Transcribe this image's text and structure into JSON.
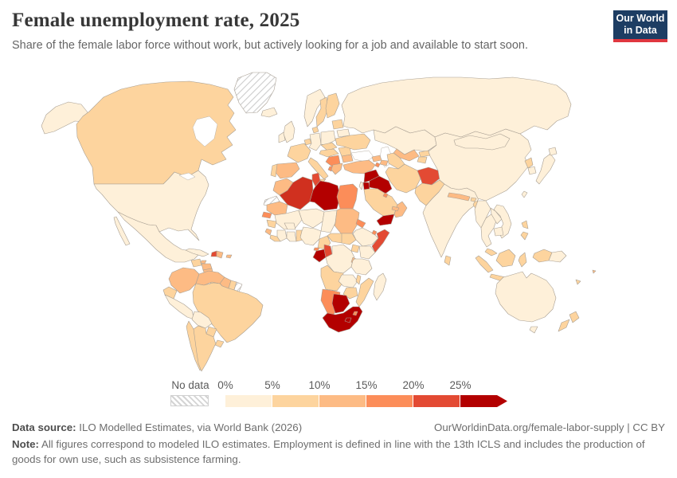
{
  "header": {
    "title": "Female unemployment rate, 2025",
    "subtitle": "Share of the female labor force without work, but actively looking for a job and available to start soon.",
    "logo": {
      "line1": "Our World",
      "line2": "in Data",
      "bg": "#1d3d63",
      "accent": "#e0373f"
    }
  },
  "legend": {
    "no_data_label": "No data",
    "tick_labels": [
      "0%",
      "5%",
      "10%",
      "15%",
      "20%",
      "25%"
    ],
    "bins": [
      {
        "range": "0-5%",
        "color": "#fef0d9"
      },
      {
        "range": "5-10%",
        "color": "#fdd49e"
      },
      {
        "range": "10-15%",
        "color": "#fdbb84"
      },
      {
        "range": "15-20%",
        "color": "#fc8d59"
      },
      {
        "range": "20-25%",
        "color": "#e34a33"
      },
      {
        "range": "25%+",
        "color": "#b30000"
      }
    ]
  },
  "footer": {
    "data_source_label": "Data source:",
    "data_source": "ILO Modelled Estimates, via World Bank (2026)",
    "link": "OurWorldinData.org/female-labor-supply | CC BY",
    "note_label": "Note:",
    "note": "All figures correspond to modeled ILO estimates. Employment is defined in line with the 13th ICLS and includes the production of goods for own use, such as subsistence farming."
  },
  "chart_data": {
    "type": "choropleth_map",
    "title": "Female unemployment rate, 2025",
    "unit": "%",
    "bin_edges": [
      0,
      5,
      10,
      15,
      20,
      25
    ],
    "open_ended_upper": true,
    "no_data_label": "No data",
    "color_overrides": {
      "Algeria": "#d0301f"
    },
    "countries": {
      "United States": "0-5%",
      "Canada": "5-10%",
      "Greenland": "No data",
      "Mexico": "0-5%",
      "Guatemala": "5-10%",
      "Honduras": "10-15%",
      "Nicaragua": "10-15%",
      "Costa Rica": "10-15%",
      "Panama": "5-10%",
      "Cuba": "0-5%",
      "Jamaica": "10-15%",
      "Haiti": "20-25%",
      "Dominican Republic": "10-15%",
      "Puerto Rico": "10-15%",
      "Colombia": "10-15%",
      "Venezuela": "10-15%",
      "Guyana": "10-15%",
      "Suriname": "5-10%",
      "French Guiana": "No data",
      "Ecuador": "5-10%",
      "Peru": "0-5%",
      "Brazil": "5-10%",
      "Bolivia": "0-5%",
      "Paraguay": "5-10%",
      "Uruguay": "5-10%",
      "Chile": "5-10%",
      "Argentina": "5-10%",
      "Iceland": "0-5%",
      "Ireland": "0-5%",
      "United Kingdom": "0-5%",
      "Norway": "0-5%",
      "Sweden": "5-10%",
      "Finland": "5-10%",
      "Denmark": "5-10%",
      "Germany": "0-5%",
      "Netherlands": "5-10%",
      "France": "5-10%",
      "Spain": "10-15%",
      "Portugal": "5-10%",
      "Italy": "5-10%",
      "Poland": "0-5%",
      "Czechia": "5-10%",
      "Hungary": "5-10%",
      "Romania": "5-10%",
      "Bulgaria": "10-15%",
      "Serbia": "15-20%",
      "Albania": "15-20%",
      "Greece": "10-15%",
      "Ukraine": "5-10%",
      "Belarus": "0-5%",
      "Lithuania": "5-10%",
      "Russia": "0-5%",
      "Turkey": "10-15%",
      "Georgia": "10-15%",
      "Azerbaijan": "10-15%",
      "Armenia": "15-20%",
      "Syria": "25%+",
      "Iraq": "25%+",
      "Jordan": "25%+",
      "Israel": "0-5%",
      "Saudi Arabia": "5-10%",
      "Yemen": "25%+",
      "Oman": "10-15%",
      "United Arab Emirates": "10-15%",
      "Kuwait": "15-20%",
      "Iran": "5-10%",
      "Afghanistan": "20-25%",
      "Pakistan": "5-10%",
      "India": "0-5%",
      "Nepal": "10-15%",
      "Bhutan": "5-10%",
      "Bangladesh": "5-10%",
      "Sri Lanka": "5-10%",
      "Kazakhstan": "0-5%",
      "Uzbekistan": "10-15%",
      "Turkmenistan": "5-10%",
      "Kyrgyzstan": "5-10%",
      "Tajikistan": "5-10%",
      "China": "0-5%",
      "Mongolia": "0-5%",
      "North Korea": "5-10%",
      "South Korea": "0-5%",
      "Japan": "0-5%",
      "Taiwan": "0-5%",
      "Myanmar": "0-5%",
      "Thailand": "0-5%",
      "Laos": "0-5%",
      "Vietnam": "0-5%",
      "Cambodia": "0-5%",
      "Malaysia": "5-10%",
      "Indonesia": "5-10%",
      "Philippines": "5-10%",
      "Papua New Guinea": "0-5%",
      "Australia": "0-5%",
      "New Zealand": "5-10%",
      "Fiji": "10-15%",
      "New Caledonia": "5-10%",
      "Morocco": "10-15%",
      "Western Sahara": "No data",
      "Algeria": "20-25%",
      "Tunisia": "20-25%",
      "Libya": "25%+",
      "Egypt": "15-20%",
      "Mauritania": "10-15%",
      "Mali": "0-5%",
      "Niger": "0-5%",
      "Chad": "0-5%",
      "Sudan": "10-15%",
      "Eritrea": "15-20%",
      "Djibouti": "15-20%",
      "Ethiopia": "0-5%",
      "Somalia": "20-25%",
      "Kenya": "0-5%",
      "Uganda": "5-10%",
      "Senegal": "15-20%",
      "Guinea": "5-10%",
      "Sierra Leone": "10-15%",
      "Liberia": "5-10%",
      "Cote d'Ivoire": "0-5%",
      "Ghana": "0-5%",
      "Burkina Faso": "0-5%",
      "Togo": "5-10%",
      "Nigeria": "0-5%",
      "Cameroon": "5-10%",
      "Central African Republic": "5-10%",
      "South Sudan": "5-10%",
      "Gabon": "25%+",
      "Congo": "20-25%",
      "Equatorial Guinea": "15-20%",
      "DR Congo": "0-5%",
      "Rwanda": "10-15%",
      "Tanzania": "0-5%",
      "Angola": "5-10%",
      "Zambia": "0-5%",
      "Malawi": "5-10%",
      "Mozambique": "5-10%",
      "Zimbabwe": "5-10%",
      "Namibia": "15-20%",
      "Botswana": "25%+",
      "South Africa": "25%+",
      "Lesotho": "25%+",
      "Eswatini": "15-20%",
      "Madagascar": "0-5%"
    }
  }
}
